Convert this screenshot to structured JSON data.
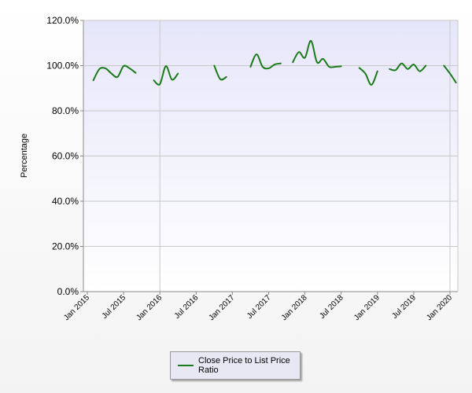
{
  "chart_data": {
    "type": "line",
    "title": "",
    "xlabel": "",
    "ylabel": "Percentage",
    "x_range": [
      "2015-01",
      "2020-01"
    ],
    "ylim": [
      0,
      120
    ],
    "y_ticks": [
      "0.0%",
      "20.0%",
      "40.0%",
      "60.0%",
      "80.0%",
      "100.0%",
      "120.0%"
    ],
    "x_ticks": [
      "Jan 2015",
      "Jul 2015",
      "Jan 2016",
      "Jul 2016",
      "Jan 2017",
      "Jul 2017",
      "Jan 2018",
      "Jul 2018",
      "Jan 2019",
      "Jul 2019",
      "Jan 2020"
    ],
    "grid": true,
    "legend_position": "bottom-center",
    "colors": {
      "plot_background_top": "#e6e6fa",
      "plot_background_bottom": "#ffffff",
      "grid": "#c8c8c8",
      "series": "#1a7a1a"
    },
    "series": [
      {
        "name": "Close Price to List Price Ratio",
        "segments": [
          [
            [
              "2015-02",
              93.5
            ],
            [
              "2015-03",
              98.5
            ],
            [
              "2015-04",
              98.8
            ],
            [
              "2015-05",
              96.5
            ],
            [
              "2015-06",
              95.0
            ],
            [
              "2015-07",
              99.8
            ],
            [
              "2015-08",
              98.8
            ],
            [
              "2015-09",
              96.8
            ]
          ],
          [
            [
              "2015-12",
              93.5
            ],
            [
              "2016-01",
              91.8
            ],
            [
              "2016-02",
              99.8
            ],
            [
              "2016-03",
              93.8
            ],
            [
              "2016-04",
              96.5
            ]
          ],
          [
            [
              "2016-10",
              100.0
            ],
            [
              "2016-11",
              94.0
            ],
            [
              "2016-12",
              95.0
            ]
          ],
          [
            [
              "2017-04",
              99.5
            ],
            [
              "2017-05",
              105.0
            ],
            [
              "2017-06",
              99.5
            ],
            [
              "2017-07",
              98.8
            ],
            [
              "2017-08",
              100.5
            ],
            [
              "2017-09",
              101.0
            ]
          ],
          [
            [
              "2017-11",
              101.5
            ],
            [
              "2017-12",
              106.0
            ],
            [
              "2018-01",
              103.5
            ],
            [
              "2018-02",
              111.0
            ],
            [
              "2018-03",
              101.5
            ],
            [
              "2018-04",
              103.0
            ],
            [
              "2018-05",
              99.5
            ],
            [
              "2018-06",
              99.5
            ],
            [
              "2018-07",
              99.7
            ]
          ],
          [
            [
              "2018-10",
              99.0
            ],
            [
              "2018-11",
              96.5
            ],
            [
              "2018-12",
              91.5
            ],
            [
              "2019-01",
              97.5
            ]
          ],
          [
            [
              "2019-03",
              98.5
            ],
            [
              "2019-04",
              98.0
            ],
            [
              "2019-05",
              101.0
            ],
            [
              "2019-06",
              98.5
            ],
            [
              "2019-07",
              100.5
            ],
            [
              "2019-08",
              97.5
            ],
            [
              "2019-09",
              100.0
            ]
          ],
          [
            [
              "2019-12",
              100.0
            ],
            [
              "2020-01",
              96.5
            ],
            [
              "2020-02",
              92.5
            ]
          ]
        ]
      }
    ]
  }
}
